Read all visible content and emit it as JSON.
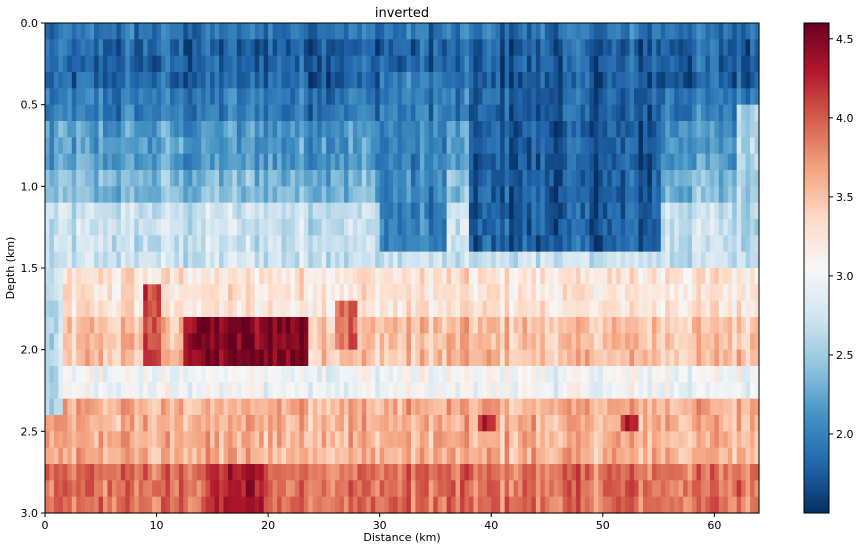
{
  "chart_data": {
    "type": "heatmap",
    "title": "inverted",
    "xlabel": "Distance (km)",
    "ylabel": "Depth (km)",
    "xlim": [
      0,
      64
    ],
    "ylim": [
      3.0,
      0.0
    ],
    "x_ticks": [
      0,
      10,
      20,
      30,
      40,
      50,
      60
    ],
    "x_tick_labels": [
      "0",
      "10",
      "20",
      "30",
      "40",
      "50",
      "60"
    ],
    "y_ticks": [
      0.0,
      0.5,
      1.0,
      1.5,
      2.0,
      2.5,
      3.0
    ],
    "y_tick_labels": [
      "0.0",
      "0.5",
      "1.0",
      "1.5",
      "2.0",
      "2.5",
      "3.0"
    ],
    "colormap": "RdBu_r",
    "colorbar": {
      "vmin": 1.5,
      "vmax": 4.6,
      "ticks": [
        2.0,
        2.5,
        3.0,
        3.5,
        4.0,
        4.5
      ],
      "tick_labels": [
        "2.0",
        "2.5",
        "3.0",
        "3.5",
        "4.0",
        "4.5"
      ]
    },
    "grid": false,
    "depth_layers": [
      {
        "depth_top": 0.0,
        "depth_bottom": 0.1,
        "value": 1.9
      },
      {
        "depth_top": 0.1,
        "depth_bottom": 0.4,
        "value": 1.8
      },
      {
        "depth_top": 0.4,
        "depth_bottom": 0.6,
        "value": 1.95
      },
      {
        "depth_top": 0.6,
        "depth_bottom": 0.9,
        "value": 2.15
      },
      {
        "depth_top": 0.9,
        "depth_bottom": 1.1,
        "value": 2.35
      },
      {
        "depth_top": 1.1,
        "depth_bottom": 1.5,
        "value": 2.7
      },
      {
        "depth_top": 1.5,
        "depth_bottom": 1.8,
        "value": 3.25
      },
      {
        "depth_top": 1.8,
        "depth_bottom": 2.1,
        "value": 3.5
      },
      {
        "depth_top": 2.1,
        "depth_bottom": 2.3,
        "value": 3.0
      },
      {
        "depth_top": 2.3,
        "depth_bottom": 2.7,
        "value": 3.6
      },
      {
        "depth_top": 2.7,
        "depth_bottom": 3.0,
        "value": 3.9
      }
    ],
    "anomalies": [
      {
        "x_from": 12.5,
        "x_to": 23.5,
        "depth_from": 1.8,
        "depth_to": 2.1,
        "value": 4.5
      },
      {
        "x_from": 9,
        "x_to": 10.5,
        "depth_from": 1.6,
        "depth_to": 2.1,
        "value": 4.1
      },
      {
        "x_from": 26,
        "x_to": 28,
        "depth_from": 1.7,
        "depth_to": 2.0,
        "value": 4.0
      },
      {
        "x_from": 30,
        "x_to": 36,
        "depth_from": 0.3,
        "depth_to": 1.4,
        "value": 2.0
      },
      {
        "x_from": 38,
        "x_to": 55,
        "depth_from": 0.1,
        "depth_to": 1.4,
        "value": 1.75
      },
      {
        "x_from": 39,
        "x_to": 40.5,
        "depth_from": 2.4,
        "depth_to": 2.5,
        "value": 4.2
      },
      {
        "x_from": 51.5,
        "x_to": 53,
        "depth_from": 2.4,
        "depth_to": 2.5,
        "value": 4.2
      },
      {
        "x_from": 15,
        "x_to": 20,
        "depth_from": 2.75,
        "depth_to": 3.0,
        "value": 4.3
      },
      {
        "x_from": 0,
        "x_to": 1.5,
        "depth_from": 1.4,
        "depth_to": 2.4,
        "value": 2.6
      },
      {
        "x_from": 62,
        "x_to": 64,
        "depth_from": 0.5,
        "depth_to": 1.4,
        "value": 2.6
      }
    ]
  }
}
